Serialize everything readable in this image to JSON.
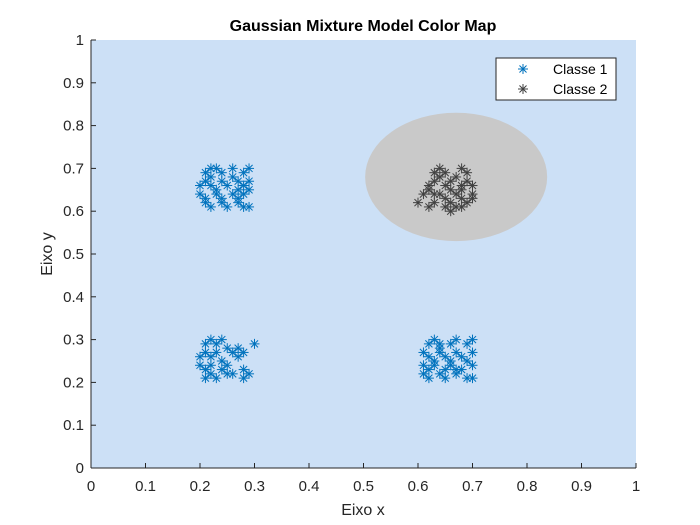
{
  "chart_data": {
    "type": "scatter",
    "title": "Gaussian Mixture Model Color Map",
    "xlabel": "Eixo x",
    "ylabel": "Eixo y",
    "xlim": [
      0,
      1
    ],
    "ylim": [
      0,
      1
    ],
    "xticks": [
      "0",
      "0.1",
      "0.2",
      "0.3",
      "0.4",
      "0.5",
      "0.6",
      "0.7",
      "0.8",
      "0.9",
      "1"
    ],
    "yticks": [
      "0",
      "0.1",
      "0.2",
      "0.3",
      "0.4",
      "0.5",
      "0.6",
      "0.7",
      "0.8",
      "0.9",
      "1"
    ],
    "grid": false,
    "legend_position": "top-right",
    "background_region_color": "#cce0f6",
    "gaussian_region": {
      "cx": 0.67,
      "cy": 0.68,
      "rx": 0.167,
      "ry": 0.15,
      "color": "#c9c9c9"
    },
    "series": [
      {
        "name": "Classe 1",
        "marker": "asterisk",
        "color": "#0072bd",
        "points": [
          [
            0.21,
            0.69
          ],
          [
            0.22,
            0.7
          ],
          [
            0.23,
            0.7
          ],
          [
            0.24,
            0.69
          ],
          [
            0.26,
            0.7
          ],
          [
            0.28,
            0.69
          ],
          [
            0.29,
            0.7
          ],
          [
            0.21,
            0.67
          ],
          [
            0.22,
            0.66
          ],
          [
            0.24,
            0.67
          ],
          [
            0.25,
            0.66
          ],
          [
            0.27,
            0.67
          ],
          [
            0.28,
            0.66
          ],
          [
            0.29,
            0.67
          ],
          [
            0.2,
            0.64
          ],
          [
            0.21,
            0.63
          ],
          [
            0.23,
            0.64
          ],
          [
            0.24,
            0.63
          ],
          [
            0.26,
            0.64
          ],
          [
            0.27,
            0.63
          ],
          [
            0.28,
            0.64
          ],
          [
            0.21,
            0.62
          ],
          [
            0.22,
            0.61
          ],
          [
            0.24,
            0.62
          ],
          [
            0.25,
            0.61
          ],
          [
            0.27,
            0.62
          ],
          [
            0.28,
            0.61
          ],
          [
            0.29,
            0.61
          ],
          [
            0.22,
            0.68
          ],
          [
            0.26,
            0.68
          ],
          [
            0.23,
            0.65
          ],
          [
            0.29,
            0.65
          ],
          [
            0.2,
            0.66
          ],
          [
            0.27,
            0.65
          ],
          [
            0.21,
            0.29
          ],
          [
            0.22,
            0.3
          ],
          [
            0.23,
            0.29
          ],
          [
            0.24,
            0.3
          ],
          [
            0.25,
            0.28
          ],
          [
            0.27,
            0.28
          ],
          [
            0.3,
            0.29
          ],
          [
            0.21,
            0.27
          ],
          [
            0.22,
            0.26
          ],
          [
            0.23,
            0.27
          ],
          [
            0.24,
            0.25
          ],
          [
            0.26,
            0.27
          ],
          [
            0.27,
            0.26
          ],
          [
            0.28,
            0.27
          ],
          [
            0.2,
            0.24
          ],
          [
            0.21,
            0.23
          ],
          [
            0.22,
            0.24
          ],
          [
            0.24,
            0.23
          ],
          [
            0.25,
            0.24
          ],
          [
            0.26,
            0.22
          ],
          [
            0.28,
            0.23
          ],
          [
            0.21,
            0.21
          ],
          [
            0.22,
            0.22
          ],
          [
            0.23,
            0.21
          ],
          [
            0.25,
            0.22
          ],
          [
            0.28,
            0.21
          ],
          [
            0.29,
            0.22
          ],
          [
            0.2,
            0.26
          ],
          [
            0.62,
            0.29
          ],
          [
            0.63,
            0.3
          ],
          [
            0.64,
            0.28
          ],
          [
            0.66,
            0.29
          ],
          [
            0.67,
            0.3
          ],
          [
            0.69,
            0.29
          ],
          [
            0.7,
            0.3
          ],
          [
            0.61,
            0.27
          ],
          [
            0.62,
            0.26
          ],
          [
            0.64,
            0.27
          ],
          [
            0.65,
            0.26
          ],
          [
            0.67,
            0.27
          ],
          [
            0.68,
            0.26
          ],
          [
            0.7,
            0.27
          ],
          [
            0.61,
            0.24
          ],
          [
            0.62,
            0.23
          ],
          [
            0.63,
            0.24
          ],
          [
            0.65,
            0.23
          ],
          [
            0.66,
            0.24
          ],
          [
            0.68,
            0.23
          ],
          [
            0.7,
            0.24
          ],
          [
            0.61,
            0.22
          ],
          [
            0.62,
            0.21
          ],
          [
            0.64,
            0.22
          ],
          [
            0.65,
            0.21
          ],
          [
            0.67,
            0.22
          ],
          [
            0.69,
            0.21
          ],
          [
            0.7,
            0.21
          ],
          [
            0.63,
            0.25
          ],
          [
            0.66,
            0.25
          ],
          [
            0.69,
            0.25
          ],
          [
            0.64,
            0.29
          ],
          [
            0.67,
            0.23
          ]
        ]
      },
      {
        "name": "Classe 2",
        "marker": "asterisk",
        "color": "#404040",
        "points": [
          [
            0.63,
            0.69
          ],
          [
            0.64,
            0.7
          ],
          [
            0.65,
            0.69
          ],
          [
            0.67,
            0.68
          ],
          [
            0.68,
            0.7
          ],
          [
            0.69,
            0.69
          ],
          [
            0.62,
            0.66
          ],
          [
            0.63,
            0.67
          ],
          [
            0.65,
            0.66
          ],
          [
            0.66,
            0.67
          ],
          [
            0.68,
            0.66
          ],
          [
            0.69,
            0.67
          ],
          [
            0.7,
            0.66
          ],
          [
            0.61,
            0.64
          ],
          [
            0.62,
            0.65
          ],
          [
            0.64,
            0.64
          ],
          [
            0.65,
            0.63
          ],
          [
            0.67,
            0.64
          ],
          [
            0.68,
            0.63
          ],
          [
            0.7,
            0.64
          ],
          [
            0.6,
            0.62
          ],
          [
            0.62,
            0.61
          ],
          [
            0.63,
            0.62
          ],
          [
            0.65,
            0.61
          ],
          [
            0.66,
            0.62
          ],
          [
            0.67,
            0.61
          ],
          [
            0.69,
            0.62
          ],
          [
            0.64,
            0.68
          ],
          [
            0.66,
            0.65
          ],
          [
            0.68,
            0.65
          ],
          [
            0.63,
            0.64
          ],
          [
            0.7,
            0.63
          ],
          [
            0.66,
            0.6
          ],
          [
            0.68,
            0.61
          ]
        ]
      }
    ]
  }
}
